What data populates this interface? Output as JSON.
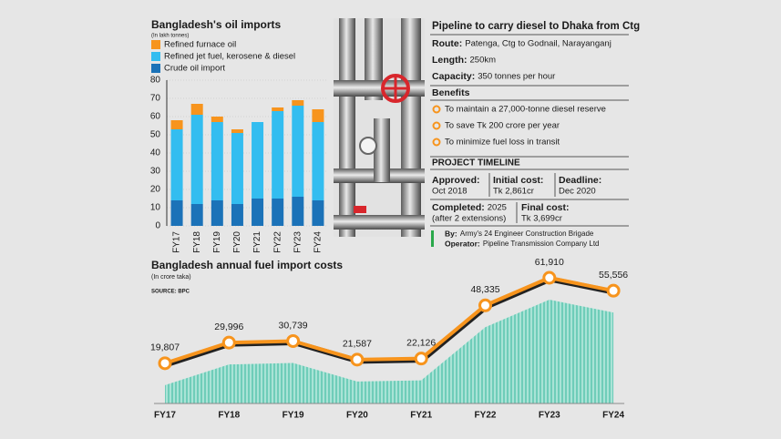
{
  "chart_data": [
    {
      "type": "stacked_bar",
      "title": "Bangladesh's oil imports",
      "subtitle": "(In lakh tonnes)",
      "categories": [
        "FY17",
        "FY18",
        "FY19",
        "FY20",
        "FY21",
        "FY22",
        "FY23",
        "FY24"
      ],
      "series": [
        {
          "name": "Crude oil import",
          "color": "#1b72b8",
          "values": [
            14,
            12,
            14,
            12,
            15,
            15,
            16,
            14
          ]
        },
        {
          "name": "Refined jet fuel, kerosene & diesel",
          "color": "#33bdf0",
          "values": [
            39,
            49,
            43,
            39,
            42,
            48,
            50,
            43
          ]
        },
        {
          "name": "Refined furnace oil",
          "color": "#f7941d",
          "values": [
            5,
            6,
            3,
            2,
            0,
            2,
            3,
            7
          ]
        }
      ],
      "ylim": [
        0,
        80
      ],
      "yticks": [
        0,
        10,
        20,
        30,
        40,
        50,
        60,
        70,
        80
      ]
    },
    {
      "type": "line",
      "title": "Bangladesh annual fuel import costs",
      "subtitle": "(In crore taka)",
      "source": "SOURCE: BPC",
      "categories": [
        "FY17",
        "FY18",
        "FY19",
        "FY20",
        "FY21",
        "FY22",
        "FY23",
        "FY24"
      ],
      "values": [
        19807,
        29996,
        30739,
        21587,
        22126,
        48335,
        61910,
        55556
      ],
      "value_labels": [
        "19,807",
        "29,996",
        "30,739",
        "21,587",
        "22,126",
        "48,335",
        "61,910",
        "55,556"
      ],
      "color": "#f7941d",
      "area_color": "#86d6c6"
    }
  ],
  "pipeline": {
    "title": "Pipeline to carry diesel to Dhaka from Ctg",
    "details": [
      {
        "label": "Route:",
        "value": "Patenga, Ctg to Godnail, Narayanganj"
      },
      {
        "label": "Length:",
        "value": "250km"
      },
      {
        "label": "Capacity:",
        "value": "350 tonnes per hour"
      }
    ],
    "benefits_title": "Benefits",
    "benefits": [
      "To maintain a 27,000-tonne diesel reserve",
      "To save Tk 200 crore per year",
      "To minimize fuel loss in transit"
    ],
    "timeline": {
      "title": "PROJECT TIMELINE",
      "items": [
        {
          "label": "Approved:",
          "value": "Oct 2018"
        },
        {
          "label": "Initial cost:",
          "value": "Tk 2,861cr"
        },
        {
          "label": "Deadline:",
          "value": "Dec 2020"
        },
        {
          "label": "Completed:",
          "value": "2025",
          "note": "(after 2 extensions)"
        },
        {
          "label": "Final cost:",
          "value": "Tk 3,699cr"
        }
      ]
    },
    "credits": [
      {
        "label": "By:",
        "value": "Army's 24 Engineer Construction Brigade"
      },
      {
        "label": "Operator:",
        "value": "Pipeline Transmission Company Ltd"
      }
    ]
  }
}
